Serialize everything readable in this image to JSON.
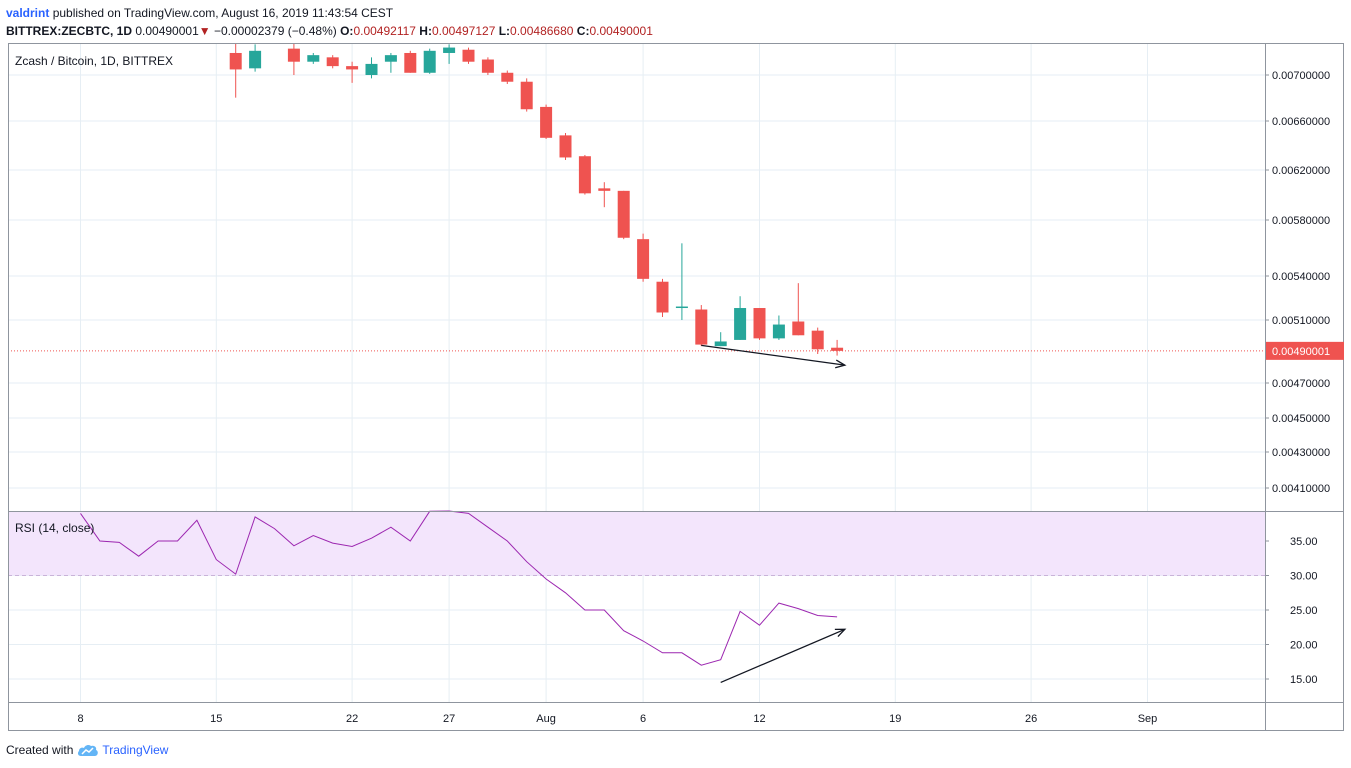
{
  "header": {
    "author": "valdrint",
    "published": "published on TradingView.com, August 16, 2019 11:43:54 CEST",
    "symbol": "BITTREX:ZECBTC, 1D",
    "last": "0.00490001",
    "change_arrow": "▼",
    "change": "−0.00002379 (−0.48%)",
    "o_label": "O:",
    "o_value": "0.00492117",
    "h_label": "H:",
    "h_value": "0.00497127",
    "l_label": "L:",
    "l_value": "0.00486680",
    "c_label": "C:",
    "c_value": "0.00490001"
  },
  "footer": {
    "created_with": "Created with",
    "brand": "TradingView"
  },
  "chart_data": {
    "type": "candlestick",
    "title": "Zcash / Bitcoin, 1D, BITTREX",
    "price_ticks": [
      "0.00700000",
      "0.00660000",
      "0.00620000",
      "0.00580000",
      "0.00540000",
      "0.00510000",
      "0.00470000",
      "0.00450000",
      "0.00430000",
      "0.00410000"
    ],
    "last_price_label": "0.00490001",
    "x_ticks": [
      {
        "label": "8",
        "day": 8
      },
      {
        "label": "15",
        "day": 15
      },
      {
        "label": "22",
        "day": 22
      },
      {
        "label": "27",
        "day": 27
      },
      {
        "label": "Aug",
        "day": 32
      },
      {
        "label": "6",
        "day": 37
      },
      {
        "label": "12",
        "day": 43
      },
      {
        "label": "19",
        "day": 50
      },
      {
        "label": "26",
        "day": 57
      },
      {
        "label": "Sep",
        "day": 63
      }
    ],
    "candles": [
      {
        "day": 16,
        "o": 0.0072,
        "h": 0.00732,
        "l": 0.0068,
        "c": 0.00705
      },
      {
        "day": 17,
        "o": 0.00706,
        "h": 0.00728,
        "l": 0.00703,
        "c": 0.00722
      },
      {
        "day": 19,
        "o": 0.00724,
        "h": 0.0073,
        "l": 0.007,
        "c": 0.00712
      },
      {
        "day": 20,
        "o": 0.00712,
        "h": 0.0072,
        "l": 0.0071,
        "c": 0.00718
      },
      {
        "day": 21,
        "o": 0.00716,
        "h": 0.00718,
        "l": 0.00706,
        "c": 0.00708
      },
      {
        "day": 22,
        "o": 0.00708,
        "h": 0.00712,
        "l": 0.00693,
        "c": 0.00705
      },
      {
        "day": 23,
        "o": 0.007,
        "h": 0.00716,
        "l": 0.00697,
        "c": 0.0071
      },
      {
        "day": 24,
        "o": 0.00712,
        "h": 0.0072,
        "l": 0.00702,
        "c": 0.00718
      },
      {
        "day": 25,
        "o": 0.0072,
        "h": 0.00722,
        "l": 0.00702,
        "c": 0.00702
      },
      {
        "day": 26,
        "o": 0.00702,
        "h": 0.00724,
        "l": 0.00701,
        "c": 0.00722
      },
      {
        "day": 27,
        "o": 0.0072,
        "h": 0.00728,
        "l": 0.0071,
        "c": 0.00725
      },
      {
        "day": 28,
        "o": 0.00723,
        "h": 0.00725,
        "l": 0.0071,
        "c": 0.00712
      },
      {
        "day": 29,
        "o": 0.00714,
        "h": 0.00716,
        "l": 0.007,
        "c": 0.00702
      },
      {
        "day": 30,
        "o": 0.00702,
        "h": 0.00704,
        "l": 0.00692,
        "c": 0.00694
      },
      {
        "day": 31,
        "o": 0.00694,
        "h": 0.00697,
        "l": 0.00668,
        "c": 0.0067
      },
      {
        "day": 32,
        "o": 0.00672,
        "h": 0.00674,
        "l": 0.00645,
        "c": 0.00646
      },
      {
        "day": 33,
        "o": 0.00648,
        "h": 0.0065,
        "l": 0.00628,
        "c": 0.0063
      },
      {
        "day": 34,
        "o": 0.00631,
        "h": 0.00632,
        "l": 0.006,
        "c": 0.00601
      },
      {
        "day": 35,
        "o": 0.00605,
        "h": 0.0061,
        "l": 0.0059,
        "c": 0.00603
      },
      {
        "day": 36,
        "o": 0.00603,
        "h": 0.00603,
        "l": 0.00566,
        "c": 0.00567
      },
      {
        "day": 37,
        "o": 0.00566,
        "h": 0.0057,
        "l": 0.00536,
        "c": 0.00538
      },
      {
        "day": 38,
        "o": 0.00536,
        "h": 0.00538,
        "l": 0.00512,
        "c": 0.00515
      },
      {
        "day": 39,
        "o": 0.00518,
        "h": 0.00563,
        "l": 0.0051,
        "c": 0.00519
      },
      {
        "day": 40,
        "o": 0.00517,
        "h": 0.0052,
        "l": 0.00493,
        "c": 0.00494
      },
      {
        "day": 41,
        "o": 0.00493,
        "h": 0.00502,
        "l": 0.00493,
        "c": 0.00496
      },
      {
        "day": 42,
        "o": 0.00497,
        "h": 0.00526,
        "l": 0.00497,
        "c": 0.00518
      },
      {
        "day": 43,
        "o": 0.00518,
        "h": 0.00518,
        "l": 0.00497,
        "c": 0.00498
      },
      {
        "day": 44,
        "o": 0.00498,
        "h": 0.00513,
        "l": 0.00497,
        "c": 0.00507
      },
      {
        "day": 45,
        "o": 0.00509,
        "h": 0.00535,
        "l": 0.005,
        "c": 0.005
      },
      {
        "day": 46,
        "o": 0.00503,
        "h": 0.00505,
        "l": 0.00488,
        "c": 0.00491
      },
      {
        "day": 47,
        "o": 0.00492,
        "h": 0.00497,
        "l": 0.00487,
        "c": 0.0049
      }
    ],
    "rsi": {
      "label": "RSI (14, close)",
      "ticks": [
        "35.00",
        "30.00",
        "25.00",
        "20.00",
        "15.00"
      ],
      "band": [
        30,
        40
      ],
      "points": [
        {
          "day": 8,
          "v": 39.0
        },
        {
          "day": 9,
          "v": 35.0
        },
        {
          "day": 10,
          "v": 34.8
        },
        {
          "day": 11,
          "v": 32.8
        },
        {
          "day": 12,
          "v": 35.0
        },
        {
          "day": 13,
          "v": 35.0
        },
        {
          "day": 14,
          "v": 38.0
        },
        {
          "day": 15,
          "v": 32.3
        },
        {
          "day": 16,
          "v": 30.2
        },
        {
          "day": 17,
          "v": 38.5
        },
        {
          "day": 18,
          "v": 36.8
        },
        {
          "day": 19,
          "v": 34.3
        },
        {
          "day": 20,
          "v": 35.8
        },
        {
          "day": 21,
          "v": 34.7
        },
        {
          "day": 22,
          "v": 34.2
        },
        {
          "day": 23,
          "v": 35.4
        },
        {
          "day": 24,
          "v": 37.0
        },
        {
          "day": 25,
          "v": 35.0
        },
        {
          "day": 26,
          "v": 39.3
        },
        {
          "day": 27,
          "v": 40.0
        },
        {
          "day": 28,
          "v": 39.0
        },
        {
          "day": 29,
          "v": 37.0
        },
        {
          "day": 30,
          "v": 35.0
        },
        {
          "day": 31,
          "v": 32.0
        },
        {
          "day": 32,
          "v": 29.5
        },
        {
          "day": 33,
          "v": 27.5
        },
        {
          "day": 34,
          "v": 25.0
        },
        {
          "day": 35,
          "v": 25.0
        },
        {
          "day": 36,
          "v": 22.0
        },
        {
          "day": 37,
          "v": 20.5
        },
        {
          "day": 38,
          "v": 18.8
        },
        {
          "day": 39,
          "v": 18.8
        },
        {
          "day": 40,
          "v": 17.0
        },
        {
          "day": 41,
          "v": 17.8
        },
        {
          "day": 42,
          "v": 24.8
        },
        {
          "day": 43,
          "v": 22.8
        },
        {
          "day": 44,
          "v": 26.0
        },
        {
          "day": 45,
          "v": 25.2
        },
        {
          "day": 46,
          "v": 24.2
        },
        {
          "day": 47,
          "v": 24.0
        }
      ]
    },
    "annotations": [
      {
        "pane": "price",
        "from": {
          "day": 40,
          "price": 0.004935
        },
        "to": {
          "day": 47.4,
          "price": 0.00481
        }
      },
      {
        "pane": "rsi",
        "from": {
          "day": 41,
          "v": 14.5
        },
        "to": {
          "day": 47.4,
          "v": 22.2
        }
      }
    ],
    "colors": {
      "up": "#26a69a",
      "down": "#ef5350",
      "rsi_line": "#9c27b0",
      "rsi_band": "#f3e5fc",
      "last_price": "#ef5350",
      "grid": "#e6eef4",
      "annotation": "#131722"
    }
  }
}
